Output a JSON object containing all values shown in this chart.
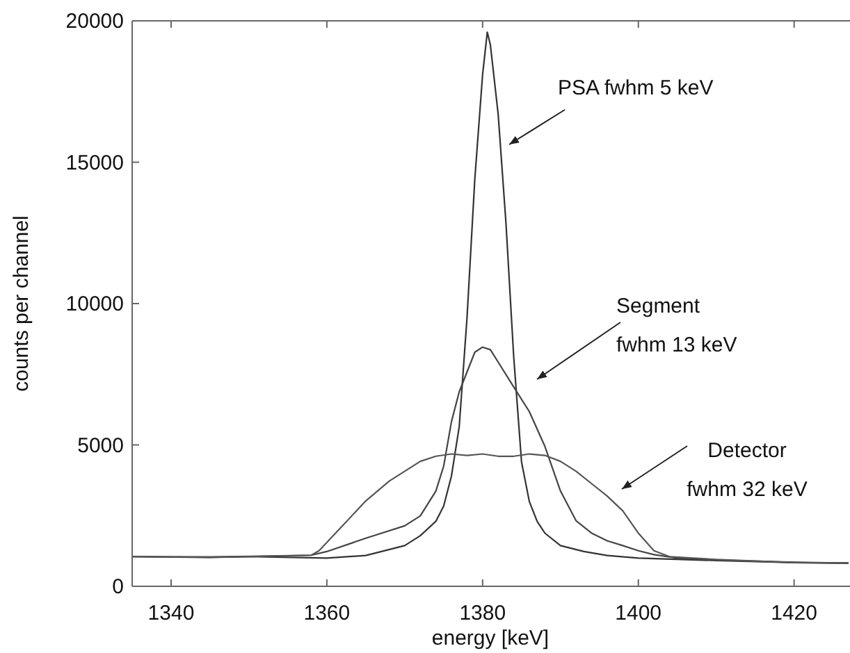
{
  "chart_data": {
    "type": "line",
    "xlabel": "energy [keV]",
    "ylabel": "counts per channel",
    "xlim": [
      1335,
      1427
    ],
    "xticks": [
      1340,
      1360,
      1380,
      1400,
      1420
    ],
    "ylim": [
      0,
      20000
    ],
    "yticks": [
      0,
      5000,
      10000,
      15000,
      20000
    ],
    "grid": false,
    "line_style": "solid",
    "annotations": [
      "PSA fwhm 5 keV",
      "Segment\nfwhm 13 keV",
      "Detector\nfwhm 32 keV"
    ],
    "series": [
      {
        "color": "#333333",
        "x": [
          1335,
          1345,
          1350,
          1360,
          1365,
          1370,
          1372,
          1374,
          1375,
          1376,
          1377,
          1378,
          1379,
          1380,
          1380.6,
          1381,
          1382,
          1383,
          1384,
          1385,
          1386,
          1387,
          1388,
          1390,
          1393,
          1396,
          1400,
          1410,
          1420,
          1427
        ],
        "values": [
          1050,
          1020,
          1050,
          1000,
          1090,
          1440,
          1790,
          2300,
          2840,
          3900,
          5650,
          9500,
          14400,
          18100,
          19600,
          19150,
          16700,
          12850,
          8100,
          4400,
          3000,
          2300,
          1880,
          1440,
          1230,
          1090,
          1000,
          910,
          840,
          820
        ]
      },
      {
        "color": "#444444",
        "x": [
          1335,
          1345,
          1350,
          1358,
          1360,
          1365,
          1370,
          1372,
          1374,
          1375,
          1376,
          1377,
          1378,
          1379,
          1380,
          1381,
          1382,
          1384,
          1386,
          1388,
          1390,
          1392,
          1394,
          1396,
          1398,
          1400,
          1402,
          1405,
          1410,
          1420,
          1427
        ],
        "values": [
          1050,
          1030,
          1050,
          1100,
          1230,
          1700,
          2140,
          2490,
          3370,
          4250,
          5820,
          6880,
          7580,
          8280,
          8460,
          8370,
          7930,
          7050,
          6180,
          4950,
          3370,
          2320,
          1880,
          1610,
          1440,
          1260,
          1120,
          1000,
          930,
          850,
          820
        ]
      },
      {
        "color": "#555555",
        "x": [
          1335,
          1345,
          1350,
          1358,
          1359,
          1362,
          1365,
          1368,
          1370,
          1372,
          1374,
          1376,
          1378,
          1380,
          1382,
          1384,
          1386,
          1388,
          1390,
          1392,
          1394,
          1396,
          1398,
          1400,
          1402,
          1404,
          1410,
          1420,
          1427
        ],
        "values": [
          1050,
          1040,
          1060,
          1100,
          1260,
          2140,
          3020,
          3720,
          4070,
          4420,
          4600,
          4680,
          4630,
          4680,
          4600,
          4600,
          4680,
          4630,
          4420,
          4070,
          3630,
          3190,
          2670,
          1880,
          1260,
          1050,
          950,
          840,
          820
        ]
      }
    ]
  }
}
